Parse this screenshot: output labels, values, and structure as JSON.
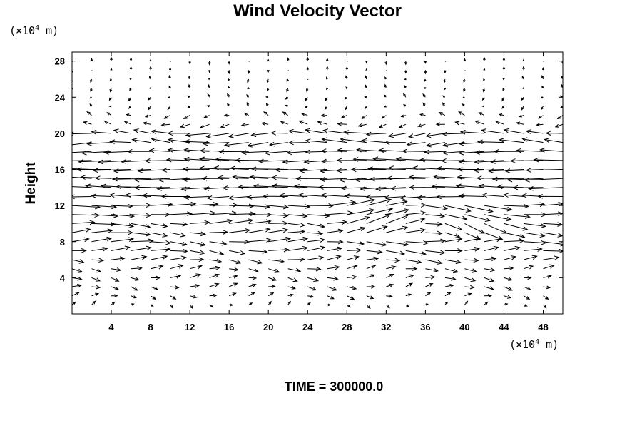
{
  "chart_data": {
    "type": "vector_field",
    "title": "Wind Velocity Vector",
    "ylabel": "Height",
    "x_unit_label": "(×10⁴ m)",
    "y_unit_label": "(×10⁴ m)",
    "x_unit": {
      "pre": "(×10",
      "exp": "4",
      "post": " m)"
    },
    "y_unit": {
      "pre": "(×10",
      "exp": "4",
      "post": " m)"
    },
    "xlim": [
      0,
      50
    ],
    "ylim": [
      0,
      29
    ],
    "xticks": [
      4,
      8,
      12,
      16,
      20,
      24,
      28,
      32,
      36,
      40,
      44,
      48
    ],
    "yticks": [
      4,
      8,
      12,
      16,
      20,
      24,
      28
    ],
    "grid": false,
    "time_label": "TIME = 300000.0",
    "vector_field": {
      "x_spacing": 2,
      "y_spacing": 1,
      "x_start": 0,
      "y_start": 1,
      "x_count": 26,
      "y_count": 28,
      "u_profile_by_height": [
        [
          1,
          0.3
        ],
        [
          2,
          0.6
        ],
        [
          3,
          0.8
        ],
        [
          4,
          0.9
        ],
        [
          5,
          1.1
        ],
        [
          6,
          1.4
        ],
        [
          7,
          1.7
        ],
        [
          8,
          1.9
        ],
        [
          9,
          1.8
        ],
        [
          10,
          2.0
        ],
        [
          11,
          2.3
        ],
        [
          12,
          2.4
        ],
        [
          13,
          -2.4
        ],
        [
          14,
          -3.0
        ],
        [
          15,
          -3.2
        ],
        [
          16,
          -3.2
        ],
        [
          17,
          -2.8
        ],
        [
          18,
          -2.5
        ],
        [
          19,
          -2.2
        ],
        [
          20,
          -2.0
        ],
        [
          21,
          -0.8
        ],
        [
          22,
          -0.5
        ],
        [
          23,
          -0.2
        ],
        [
          24,
          -0.2
        ],
        [
          25,
          -0.1
        ],
        [
          26,
          -0.1
        ],
        [
          27,
          0.0
        ],
        [
          28,
          0.0
        ]
      ]
    }
  }
}
